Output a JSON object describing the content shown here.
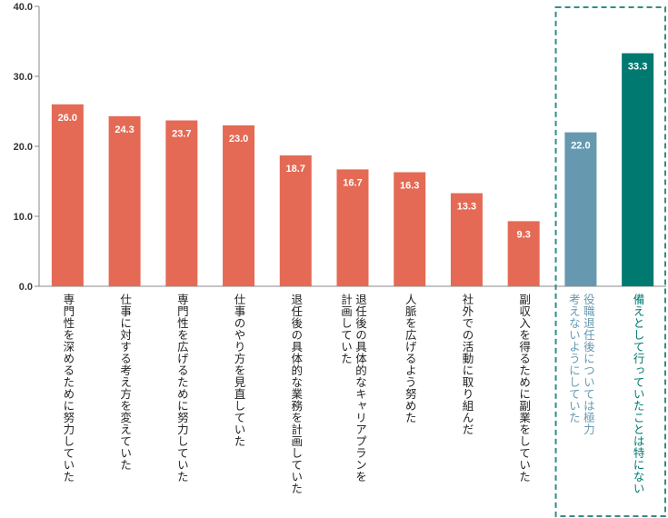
{
  "chart_data": {
    "type": "bar",
    "categories": [
      "専門性を深めるために努力していた",
      "仕事に対する考え方を変えていた",
      "専門性を広げるために努力していた",
      "仕事のやり方を見直していた",
      "退任後の具体的な業務を計画していた",
      "退任後の具体的なキャリアプランを\n計画していた",
      "人脈を広げるよう努めた",
      "社外での活動に取り組んだ",
      "副収入を得るために副業をしていた",
      "役職退任後については極力\n考えないようにしていた",
      "備えとして行っていたことは特にない"
    ],
    "values": [
      26.0,
      24.3,
      23.7,
      23.0,
      18.7,
      16.7,
      16.3,
      13.3,
      9.3,
      22.0,
      33.3
    ],
    "value_labels": [
      "26.0",
      "24.3",
      "23.7",
      "23.0",
      "18.7",
      "16.7",
      "16.3",
      "13.3",
      "9.3",
      "22.0",
      "33.3"
    ],
    "bar_colors": [
      "#e46a55",
      "#e46a55",
      "#e46a55",
      "#e46a55",
      "#e46a55",
      "#e46a55",
      "#e46a55",
      "#e46a55",
      "#e46a55",
      "#6699b0",
      "#007a70"
    ],
    "label_colors": [
      "#222222",
      "#222222",
      "#222222",
      "#222222",
      "#222222",
      "#222222",
      "#222222",
      "#222222",
      "#222222",
      "#6699b0",
      "#007a70"
    ],
    "highlight_box_color": "#2f8f80",
    "y_ticks": [
      "0.0",
      "10.0",
      "20.0",
      "30.0",
      "40.0"
    ],
    "ylim": [
      0,
      40
    ],
    "grid": false,
    "title": "",
    "xlabel": "",
    "ylabel": ""
  }
}
